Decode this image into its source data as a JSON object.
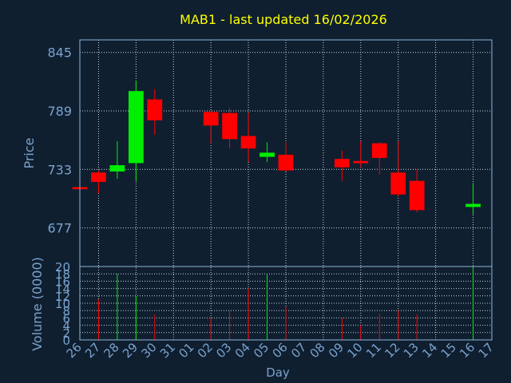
{
  "chart_data": {
    "type": "candlestick",
    "title": "MAB1 - last updated 16/02/2026",
    "price_panel": {
      "ylabel": "Price",
      "ylim": [
        640,
        857
      ],
      "yticks": [
        677,
        733,
        789,
        845
      ]
    },
    "volume_panel": {
      "ylabel": "Volume (0000)",
      "ylim": [
        0,
        20
      ],
      "yticks": [
        0,
        2,
        4,
        6,
        8,
        10,
        12,
        14,
        16,
        18,
        20
      ]
    },
    "xlabel": "Day",
    "x_ticks": [
      "26",
      "27",
      "28",
      "29",
      "30",
      "31",
      "01",
      "02",
      "03",
      "04",
      "05",
      "06",
      "07",
      "08",
      "09",
      "10",
      "11",
      "12",
      "13",
      "14",
      "15",
      "16",
      "17"
    ],
    "candles": [
      {
        "day": "26",
        "open": 716,
        "high": 717,
        "low": 713,
        "close": 714,
        "volume": 0
      },
      {
        "day": "27",
        "open": 730,
        "high": 732,
        "low": 710,
        "close": 721,
        "volume": 11
      },
      {
        "day": "28",
        "open": 731,
        "high": 760,
        "low": 724,
        "close": 737,
        "volume": 18
      },
      {
        "day": "29",
        "open": 739,
        "high": 818,
        "low": 722,
        "close": 808,
        "volume": 12
      },
      {
        "day": "30",
        "open": 800,
        "high": 810,
        "low": 766,
        "close": 780,
        "volume": 7
      },
      {
        "day": "02",
        "open": 788,
        "high": 789,
        "low": 758,
        "close": 775,
        "volume": 6
      },
      {
        "day": "03",
        "open": 787,
        "high": 792,
        "low": 753,
        "close": 762,
        "volume": 8
      },
      {
        "day": "04",
        "open": 765,
        "high": 787,
        "low": 740,
        "close": 753,
        "volume": 14
      },
      {
        "day": "05",
        "open": 745,
        "high": 759,
        "low": 740,
        "close": 749,
        "volume": 18
      },
      {
        "day": "06",
        "open": 747,
        "high": 759,
        "low": 731,
        "close": 732,
        "volume": 9
      },
      {
        "day": "09",
        "open": 743,
        "high": 751,
        "low": 722,
        "close": 735,
        "volume": 6
      },
      {
        "day": "10",
        "open": 741,
        "high": 760,
        "low": 735,
        "close": 739,
        "volume": 4
      },
      {
        "day": "11",
        "open": 758,
        "high": 759,
        "low": 728,
        "close": 744,
        "volume": 7
      },
      {
        "day": "12",
        "open": 730,
        "high": 760,
        "low": 707,
        "close": 709,
        "volume": 8
      },
      {
        "day": "13",
        "open": 722,
        "high": 733,
        "low": 692,
        "close": 694,
        "volume": 7
      },
      {
        "day": "16",
        "open": 697,
        "high": 720,
        "low": 690,
        "close": 700,
        "volume": 20
      }
    ],
    "grid": true,
    "colors": {
      "up": "#00ee00",
      "down": "#ff0000",
      "background": "#0f1f30",
      "title": "#ffff00",
      "axis_text": "#7aa2cc",
      "frame": "#8fb4d6",
      "grid": "#c8d4e0"
    }
  }
}
